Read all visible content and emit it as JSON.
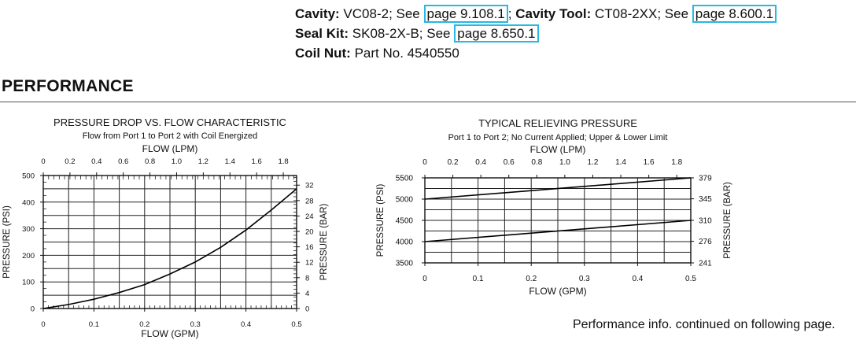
{
  "specs": {
    "cavity_label": "Cavity:",
    "cavity_value": "VC08-2; See",
    "cavity_page": "page 9.108.1",
    "cavity_sep": ";",
    "tool_label": "Cavity Tool:",
    "tool_value": "CT08-2XX; See",
    "tool_page": "page 8.600.1",
    "seal_label": "Seal Kit:",
    "seal_value": "SK08-2X-B; See",
    "seal_page": "page 8.650.1",
    "coil_label": "Coil Nut:",
    "coil_value": "Part No. 4540550"
  },
  "section_title": "PERFORMANCE",
  "footnote": "Performance info. continued on following page.",
  "colors": {
    "link_border": "#2ab7e0",
    "ink": "#111111"
  },
  "chart_data": [
    {
      "type": "line",
      "title": "PRESSURE DROP VS. FLOW CHARACTERISTIC",
      "subtitle": "Flow from Port 1 to Port 2 with Coil Energized",
      "xlabel": "FLOW (GPM)",
      "x2label": "FLOW (LPM)",
      "ylabel": "PRESSURE (PSI)",
      "y2label": "PRESSURE (BAR)",
      "xlim": [
        0,
        0.5
      ],
      "ylim": [
        0,
        500
      ],
      "x2lim": [
        0,
        1.9
      ],
      "y2lim": [
        0,
        34.5
      ],
      "xticks": [
        "0",
        "0.1",
        "0.2",
        "0.3",
        "0.4",
        "0.5"
      ],
      "x2ticks": [
        "0",
        "0.2",
        "0.4",
        "0.6",
        "0.8",
        "1.0",
        "1.2",
        "1.4",
        "1.6",
        "1.8"
      ],
      "yticks": [
        "0",
        "100",
        "200",
        "300",
        "400",
        "500"
      ],
      "y2ticks": [
        "0",
        "4",
        "8",
        "12",
        "16",
        "20",
        "24",
        "28",
        "32"
      ],
      "grid": true,
      "series": [
        {
          "x": [
            0,
            0.05,
            0.1,
            0.15,
            0.2,
            0.25,
            0.3,
            0.35,
            0.4,
            0.45,
            0.5
          ],
          "y": [
            0,
            15,
            35,
            60,
            90,
            130,
            175,
            230,
            295,
            370,
            450
          ]
        }
      ]
    },
    {
      "type": "line",
      "title": "TYPICAL RELIEVING PRESSURE",
      "subtitle": "Port 1 to Port 2; No Current Applied; Upper & Lower Limit",
      "xlabel": "FLOW (GPM)",
      "x2label": "FLOW (LPM)",
      "ylabel": "PRESSURE (PSI)",
      "y2label": "PRESSURE (BAR)",
      "xlim": [
        0,
        0.5
      ],
      "ylim": [
        3500,
        5500
      ],
      "x2lim": [
        0,
        1.9
      ],
      "y2lim": [
        241,
        379
      ],
      "xticks": [
        "0",
        "0.1",
        "0.2",
        "0.3",
        "0.4",
        "0.5"
      ],
      "x2ticks": [
        "0",
        "0.2",
        "0.4",
        "0.6",
        "0.8",
        "1.0",
        "1.2",
        "1.4",
        "1.6",
        "1.8"
      ],
      "yticks": [
        "3500",
        "4000",
        "4500",
        "5000",
        "5500"
      ],
      "y2ticks": [
        "241",
        "276",
        "310",
        "345",
        "379"
      ],
      "grid": true,
      "series": [
        {
          "x": [
            0,
            0.5
          ],
          "y": [
            5000,
            5500
          ]
        },
        {
          "x": [
            0,
            0.5
          ],
          "y": [
            4000,
            4500
          ]
        }
      ]
    }
  ]
}
